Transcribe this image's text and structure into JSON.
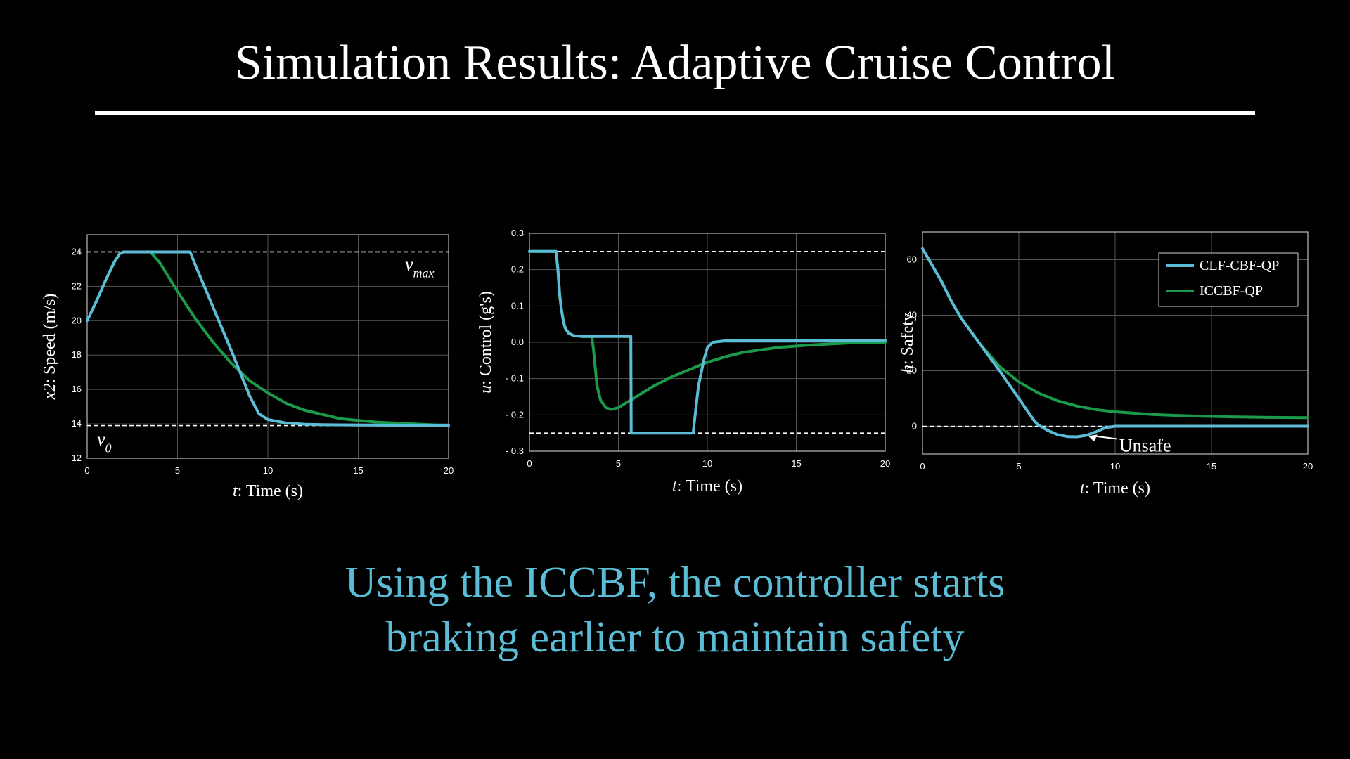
{
  "slide": {
    "title": "Simulation Results: Adaptive Cruise Control",
    "caption_line1": "Using the ICCBF, the controller starts",
    "caption_line2": "braking earlier to maintain safety"
  },
  "colors": {
    "clf": "#5bbcd6",
    "iccbf": "#1a9a4a",
    "caption": "#5bbcd6"
  },
  "chart_data": [
    {
      "type": "line",
      "xlabel": "t: Time (s)",
      "ylabel": "x2: Speed (m/s)",
      "xlim": [
        0,
        20
      ],
      "ylim": [
        12,
        25
      ],
      "xticks": [
        0,
        5,
        10,
        15,
        20
      ],
      "yticks": [
        12,
        14,
        16,
        18,
        20,
        22,
        24
      ],
      "grid": true,
      "hlines": [
        {
          "y": 24,
          "label": "v_max"
        },
        {
          "y": 13.9,
          "label": "v_0"
        }
      ],
      "series": [
        {
          "key": "clf",
          "x": [
            0,
            0.5,
            1,
            1.5,
            1.8,
            2,
            3,
            4,
            5,
            5.7,
            6,
            7,
            8,
            9,
            9.5,
            10,
            11,
            12,
            13,
            15,
            20
          ],
          "y": [
            20,
            21.1,
            22.3,
            23.4,
            23.9,
            24,
            24,
            24,
            24,
            24,
            23.2,
            20.7,
            18.2,
            15.6,
            14.6,
            14.25,
            14.05,
            13.98,
            13.95,
            13.93,
            13.9
          ]
        },
        {
          "key": "iccbf",
          "x": [
            0,
            0.5,
            1,
            1.5,
            1.8,
            2,
            3,
            3.5,
            4,
            5,
            6,
            7,
            8,
            9,
            10,
            11,
            12,
            14,
            16,
            18,
            20
          ],
          "y": [
            20,
            21.1,
            22.3,
            23.4,
            23.9,
            24,
            24,
            24,
            23.4,
            21.7,
            20.1,
            18.7,
            17.5,
            16.5,
            15.8,
            15.2,
            14.8,
            14.3,
            14.1,
            14.0,
            13.9
          ]
        }
      ]
    },
    {
      "type": "line",
      "xlabel": "t: Time (s)",
      "ylabel": "u: Control (g's)",
      "xlim": [
        0,
        20
      ],
      "ylim": [
        -0.3,
        0.3
      ],
      "xticks": [
        0,
        5,
        10,
        15,
        20
      ],
      "yticks": [
        -0.3,
        -0.2,
        -0.1,
        0.0,
        0.1,
        0.2,
        0.3
      ],
      "ytick_labels": [
        "- 0.3",
        "- 0.2",
        "- 0.1",
        "0.0",
        "0.1",
        "0.2",
        "0.3"
      ],
      "grid": true,
      "hlines": [
        {
          "y": 0.25
        },
        {
          "y": -0.25
        }
      ],
      "series": [
        {
          "key": "clf",
          "x": [
            0,
            1.5,
            1.6,
            1.7,
            1.8,
            1.9,
            2,
            2.2,
            2.5,
            3,
            3.5,
            5.7,
            5.72,
            5.8,
            9.2,
            9.5,
            9.8,
            10,
            10.3,
            11,
            12,
            14,
            16,
            18,
            20
          ],
          "y": [
            0.25,
            0.25,
            0.2,
            0.13,
            0.09,
            0.06,
            0.04,
            0.025,
            0.018,
            0.016,
            0.016,
            0.016,
            -0.25,
            -0.25,
            -0.25,
            -0.12,
            -0.05,
            -0.015,
            0.0,
            0.004,
            0.005,
            0.005,
            0.005,
            0.005,
            0.005
          ]
        },
        {
          "key": "iccbf",
          "x": [
            0,
            1.5,
            1.6,
            1.7,
            1.8,
            1.9,
            2,
            2.2,
            2.5,
            3,
            3.5,
            3.6,
            3.8,
            4,
            4.3,
            4.6,
            5,
            6,
            7,
            8,
            9,
            10,
            11,
            12,
            14,
            16,
            18,
            20
          ],
          "y": [
            0.25,
            0.25,
            0.2,
            0.13,
            0.09,
            0.06,
            0.04,
            0.025,
            0.018,
            0.016,
            0.016,
            -0.02,
            -0.12,
            -0.16,
            -0.18,
            -0.185,
            -0.18,
            -0.15,
            -0.12,
            -0.095,
            -0.075,
            -0.055,
            -0.04,
            -0.028,
            -0.014,
            -0.007,
            -0.002,
            0.0
          ]
        }
      ]
    },
    {
      "type": "line",
      "xlabel": "t: Time (s)",
      "ylabel": "h: Safety",
      "xlim": [
        0,
        20
      ],
      "ylim": [
        -10,
        70
      ],
      "xticks": [
        0,
        5,
        10,
        15,
        20
      ],
      "yticks": [
        0,
        20,
        40,
        60
      ],
      "grid": true,
      "hlines": [
        {
          "y": 0
        }
      ],
      "legend": {
        "position": "top-right",
        "entries": [
          {
            "key": "clf",
            "label": "CLF-CBF-QP"
          },
          {
            "key": "iccbf",
            "label": "ICCBF-QP"
          }
        ]
      },
      "annotation": {
        "text": "Unsafe",
        "x": 8.9,
        "y": -3.5
      },
      "series": [
        {
          "key": "clf",
          "x": [
            0,
            0.5,
            1,
            1.5,
            2,
            3,
            4,
            5,
            5.5,
            5.8,
            6,
            6.5,
            7,
            7.5,
            8,
            8.5,
            9,
            9.5,
            10,
            12,
            15,
            20
          ],
          "y": [
            64,
            58,
            52,
            45,
            39,
            29.5,
            20,
            10,
            5,
            2,
            0.5,
            -1.5,
            -3,
            -3.7,
            -3.8,
            -3.3,
            -2,
            -0.5,
            0,
            0,
            0,
            0
          ]
        },
        {
          "key": "iccbf",
          "x": [
            0,
            0.5,
            1,
            1.5,
            2,
            3,
            4,
            5,
            6,
            7,
            8,
            9,
            10,
            12,
            14,
            16,
            18,
            20
          ],
          "y": [
            64,
            58,
            52,
            45,
            39,
            29.5,
            21.5,
            16,
            12,
            9.2,
            7.3,
            6,
            5.2,
            4.2,
            3.7,
            3.4,
            3.2,
            3.1
          ]
        }
      ]
    }
  ]
}
